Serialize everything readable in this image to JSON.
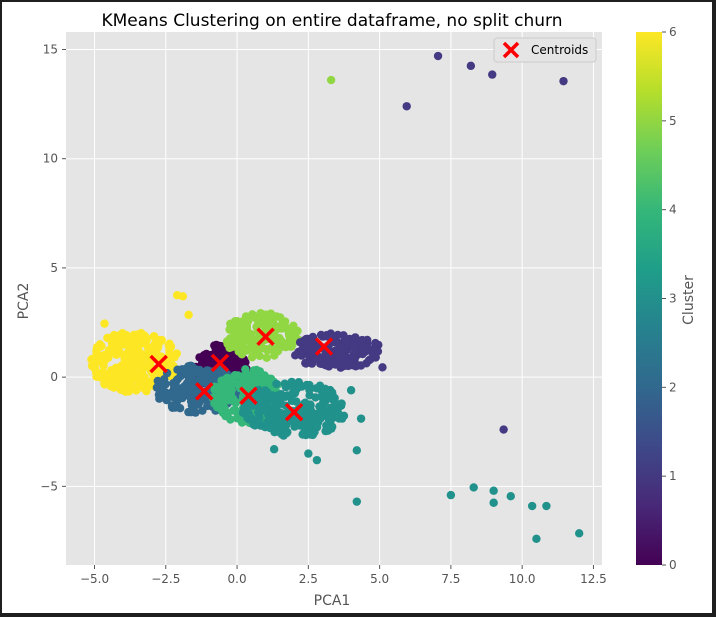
{
  "chart_data": {
    "type": "scatter",
    "title": "KMeans Clustering on entire dataframe, no split churn",
    "xlabel": "PCA1",
    "ylabel": "PCA2",
    "xlim": [
      -6.0,
      12.8
    ],
    "ylim": [
      -8.6,
      15.8
    ],
    "x_ticks": [
      -5.0,
      -2.5,
      0.0,
      2.5,
      5.0,
      7.5,
      10.0,
      12.5
    ],
    "x_tick_labels": [
      "−5.0",
      "−2.5",
      "0.0",
      "2.5",
      "5.0",
      "7.5",
      "10.0",
      "12.5"
    ],
    "y_ticks": [
      -5,
      0,
      5,
      10,
      15
    ],
    "y_tick_labels": [
      "−5",
      "0",
      "5",
      "10",
      "15"
    ],
    "grid": true,
    "legend": {
      "placement": "top-right",
      "entries": [
        "Centroids"
      ]
    },
    "colorbar": {
      "label": "Cluster",
      "ticks": [
        0,
        1,
        2,
        3,
        4,
        5,
        6
      ],
      "colormap": "viridis"
    },
    "cluster_colors": {
      "0": "#440154",
      "1": "#443983",
      "2": "#31688e",
      "3": "#21918c",
      "4": "#35b779",
      "5": "#90d743",
      "6": "#fde725"
    },
    "centroid_color": "#ff0000",
    "centroids": [
      {
        "x": -0.6,
        "y": 0.65
      },
      {
        "x": 3.05,
        "y": 1.4
      },
      {
        "x": -1.15,
        "y": -0.65
      },
      {
        "x": 2.0,
        "y": -1.6
      },
      {
        "x": 0.4,
        "y": -0.85
      },
      {
        "x": 1.0,
        "y": 1.85
      },
      {
        "x": -2.75,
        "y": 0.6
      }
    ],
    "cluster_regions": [
      {
        "cluster": 6,
        "cx": -3.6,
        "cy": 0.7,
        "rx": 1.55,
        "ry": 1.4,
        "n": 260
      },
      {
        "cluster": 0,
        "cx": -0.55,
        "cy": 0.45,
        "rx": 0.9,
        "ry": 1.1,
        "n": 160
      },
      {
        "cluster": 5,
        "cx": 0.85,
        "cy": 1.9,
        "rx": 1.35,
        "ry": 1.05,
        "n": 170
      },
      {
        "cluster": 1,
        "cx": 3.5,
        "cy": 1.2,
        "rx": 1.6,
        "ry": 0.8,
        "n": 170
      },
      {
        "cluster": 2,
        "cx": -1.4,
        "cy": -0.55,
        "rx": 1.5,
        "ry": 1.1,
        "n": 180
      },
      {
        "cluster": 4,
        "cx": 0.35,
        "cy": -0.85,
        "rx": 1.2,
        "ry": 1.25,
        "n": 180
      },
      {
        "cluster": 3,
        "cx": 2.0,
        "cy": -1.5,
        "rx": 1.8,
        "ry": 1.3,
        "n": 240
      }
    ],
    "outliers": [
      {
        "x": -2.1,
        "y": 3.75,
        "cluster": 6
      },
      {
        "x": -1.9,
        "y": 3.7,
        "cluster": 6
      },
      {
        "x": -1.7,
        "y": 2.85,
        "cluster": 6
      },
      {
        "x": -4.65,
        "y": 2.45,
        "cluster": 6
      },
      {
        "x": 3.3,
        "y": 13.6,
        "cluster": 5
      },
      {
        "x": 5.95,
        "y": 12.4,
        "cluster": 1
      },
      {
        "x": 7.05,
        "y": 14.7,
        "cluster": 1
      },
      {
        "x": 8.2,
        "y": 14.25,
        "cluster": 1
      },
      {
        "x": 8.95,
        "y": 13.85,
        "cluster": 1
      },
      {
        "x": 11.45,
        "y": 13.55,
        "cluster": 1
      },
      {
        "x": 9.35,
        "y": -2.4,
        "cluster": 1
      },
      {
        "x": 5.1,
        "y": 0.45,
        "cluster": 1
      },
      {
        "x": 4.2,
        "y": -5.7,
        "cluster": 3
      },
      {
        "x": 7.5,
        "y": -5.4,
        "cluster": 3
      },
      {
        "x": 8.3,
        "y": -5.05,
        "cluster": 3
      },
      {
        "x": 9.0,
        "y": -5.2,
        "cluster": 3
      },
      {
        "x": 9.0,
        "y": -5.75,
        "cluster": 3
      },
      {
        "x": 9.6,
        "y": -5.45,
        "cluster": 3
      },
      {
        "x": 10.35,
        "y": -5.9,
        "cluster": 3
      },
      {
        "x": 10.85,
        "y": -5.9,
        "cluster": 3
      },
      {
        "x": 10.5,
        "y": -7.4,
        "cluster": 3
      },
      {
        "x": 12.0,
        "y": -7.15,
        "cluster": 3
      },
      {
        "x": 2.5,
        "y": -3.5,
        "cluster": 3
      },
      {
        "x": 2.8,
        "y": -3.8,
        "cluster": 3
      },
      {
        "x": 4.2,
        "y": -3.35,
        "cluster": 3
      },
      {
        "x": 4.35,
        "y": -1.9,
        "cluster": 3
      },
      {
        "x": 1.3,
        "y": -3.3,
        "cluster": 3
      },
      {
        "x": 4.0,
        "y": -0.6,
        "cluster": 3
      }
    ]
  }
}
